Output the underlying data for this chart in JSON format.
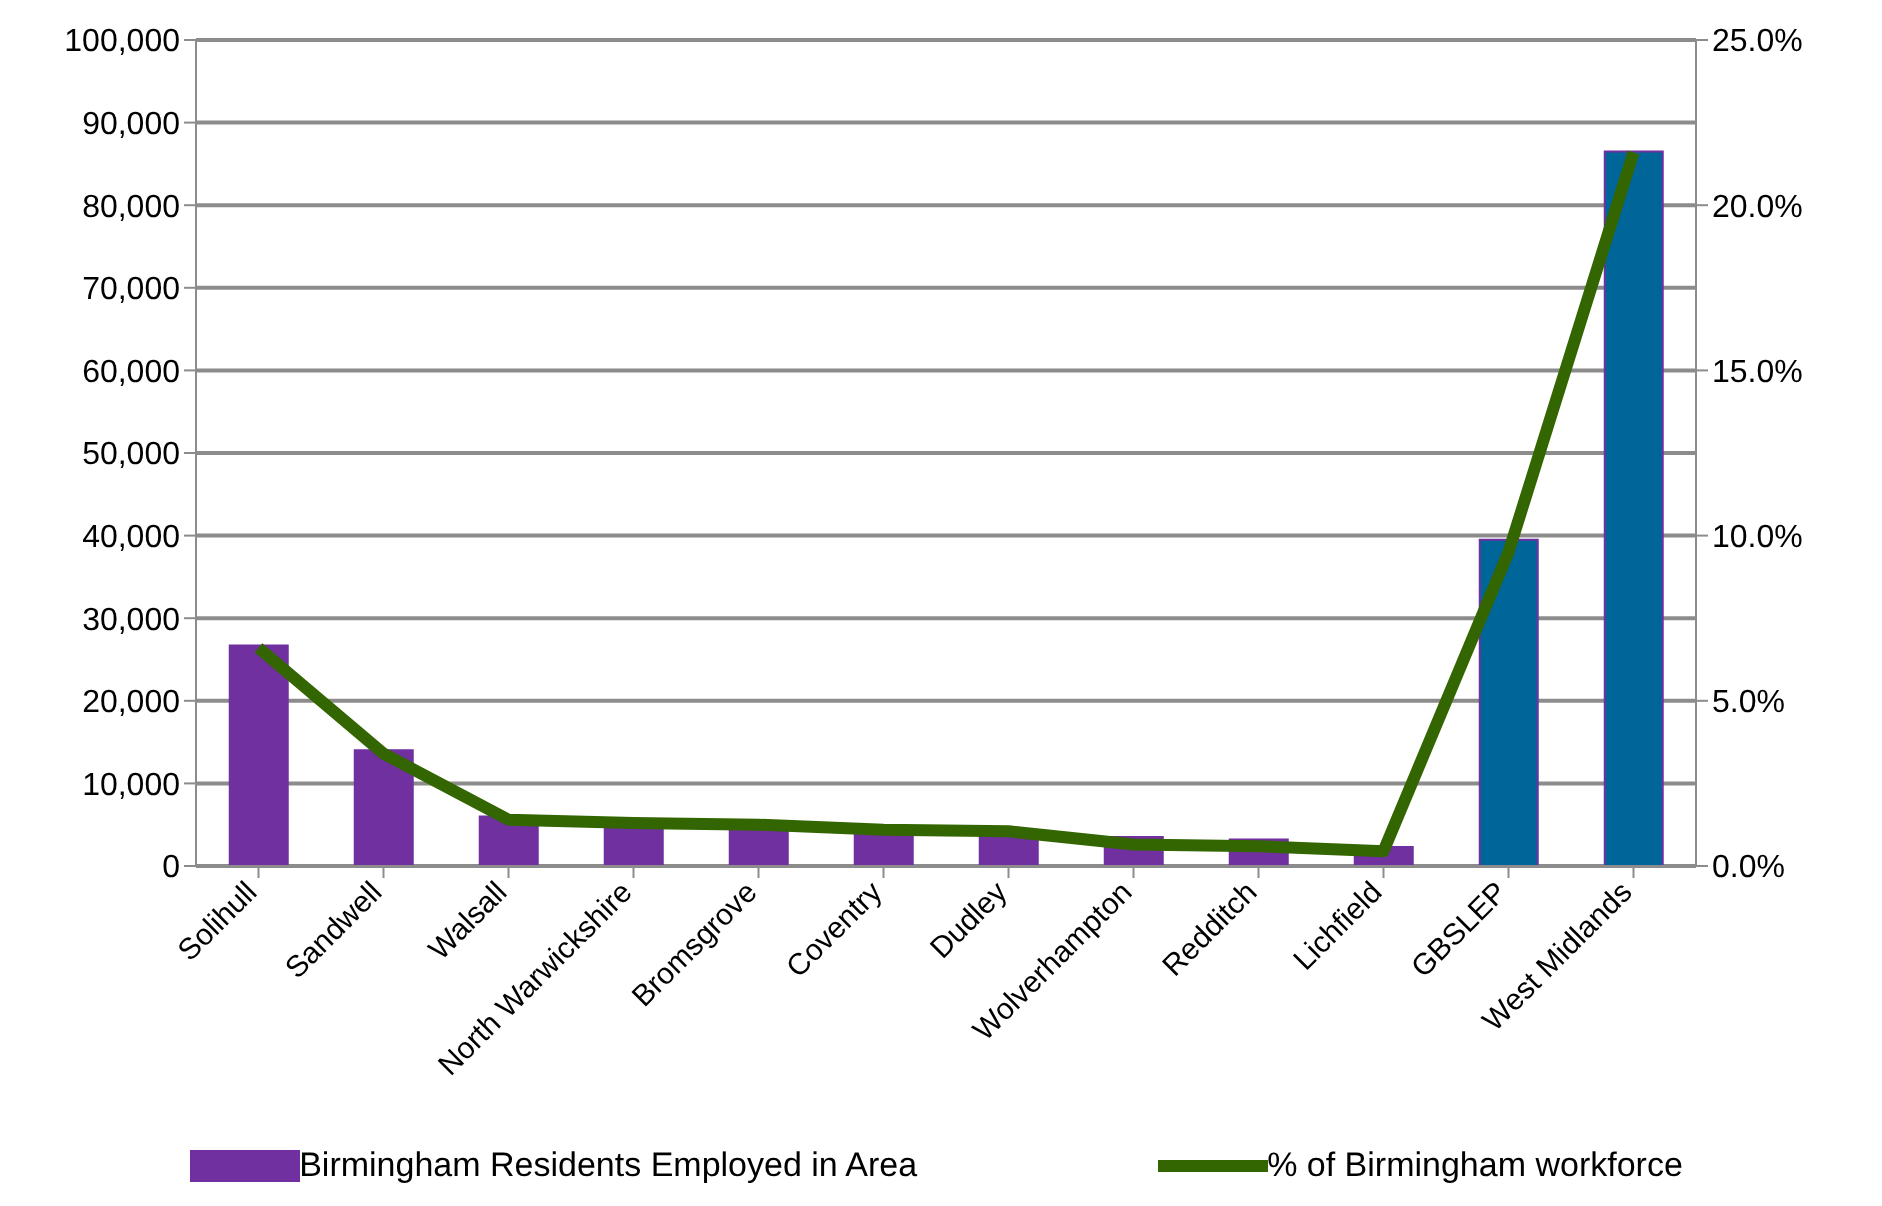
{
  "chart_data": {
    "type": "bar",
    "categories": [
      "Solihull",
      "Sandwell",
      "Walsall",
      "North Warwickshire",
      "Bromsgrove",
      "Coventry",
      "Dudley",
      "Wolverhampton",
      "Redditch",
      "Lichfield",
      "GBSLEP",
      "West Midlands"
    ],
    "series": [
      {
        "name": "Birmingham Residents Employed in Area",
        "color": "#7030a0",
        "colors": [
          "#7030a0",
          "#7030a0",
          "#7030a0",
          "#7030a0",
          "#7030a0",
          "#7030a0",
          "#7030a0",
          "#7030a0",
          "#7030a0",
          "#7030a0",
          "#006699",
          "#006699"
        ],
        "values": [
          26700,
          14000,
          6000,
          5000,
          4800,
          4400,
          4200,
          3500,
          3200,
          2300,
          39500,
          86500
        ]
      },
      {
        "name": "% of Birmingham workforce",
        "type": "line",
        "axis": "y2",
        "color": "#336600",
        "values": [
          6.6,
          3.4,
          1.4,
          1.3,
          1.25,
          1.1,
          1.05,
          0.65,
          0.6,
          0.45,
          9.5,
          21.6
        ]
      }
    ],
    "ylim": [
      0,
      100000
    ],
    "yticks": [
      0,
      {
        "value": 10000,
        "label": "10,000"
      },
      {
        "value": 20000,
        "label": "20,000"
      },
      {
        "value": 30000,
        "label": "30,000"
      },
      {
        "value": 40000,
        "label": "40,000"
      },
      {
        "value": 50000,
        "label": "50,000"
      },
      {
        "value": 60000,
        "label": "60,000"
      },
      {
        "value": 70000,
        "label": "70,000"
      },
      {
        "value": 80000,
        "label": "80,000"
      },
      {
        "value": 90000,
        "label": "90,000"
      },
      {
        "value": 100000,
        "label": "100,000"
      }
    ],
    "y2lim": [
      0,
      25
    ],
    "y2ticks": [
      {
        "value": 0,
        "label": "0.0%"
      },
      {
        "value": 5,
        "label": "5.0%"
      },
      {
        "value": 10,
        "label": "10.0%"
      },
      {
        "value": 15,
        "label": "15.0%"
      },
      {
        "value": 20,
        "label": "20.0%"
      },
      {
        "value": 25,
        "label": "25.0%"
      }
    ],
    "grid": "y",
    "legend": "bottom",
    "marker": "none"
  }
}
